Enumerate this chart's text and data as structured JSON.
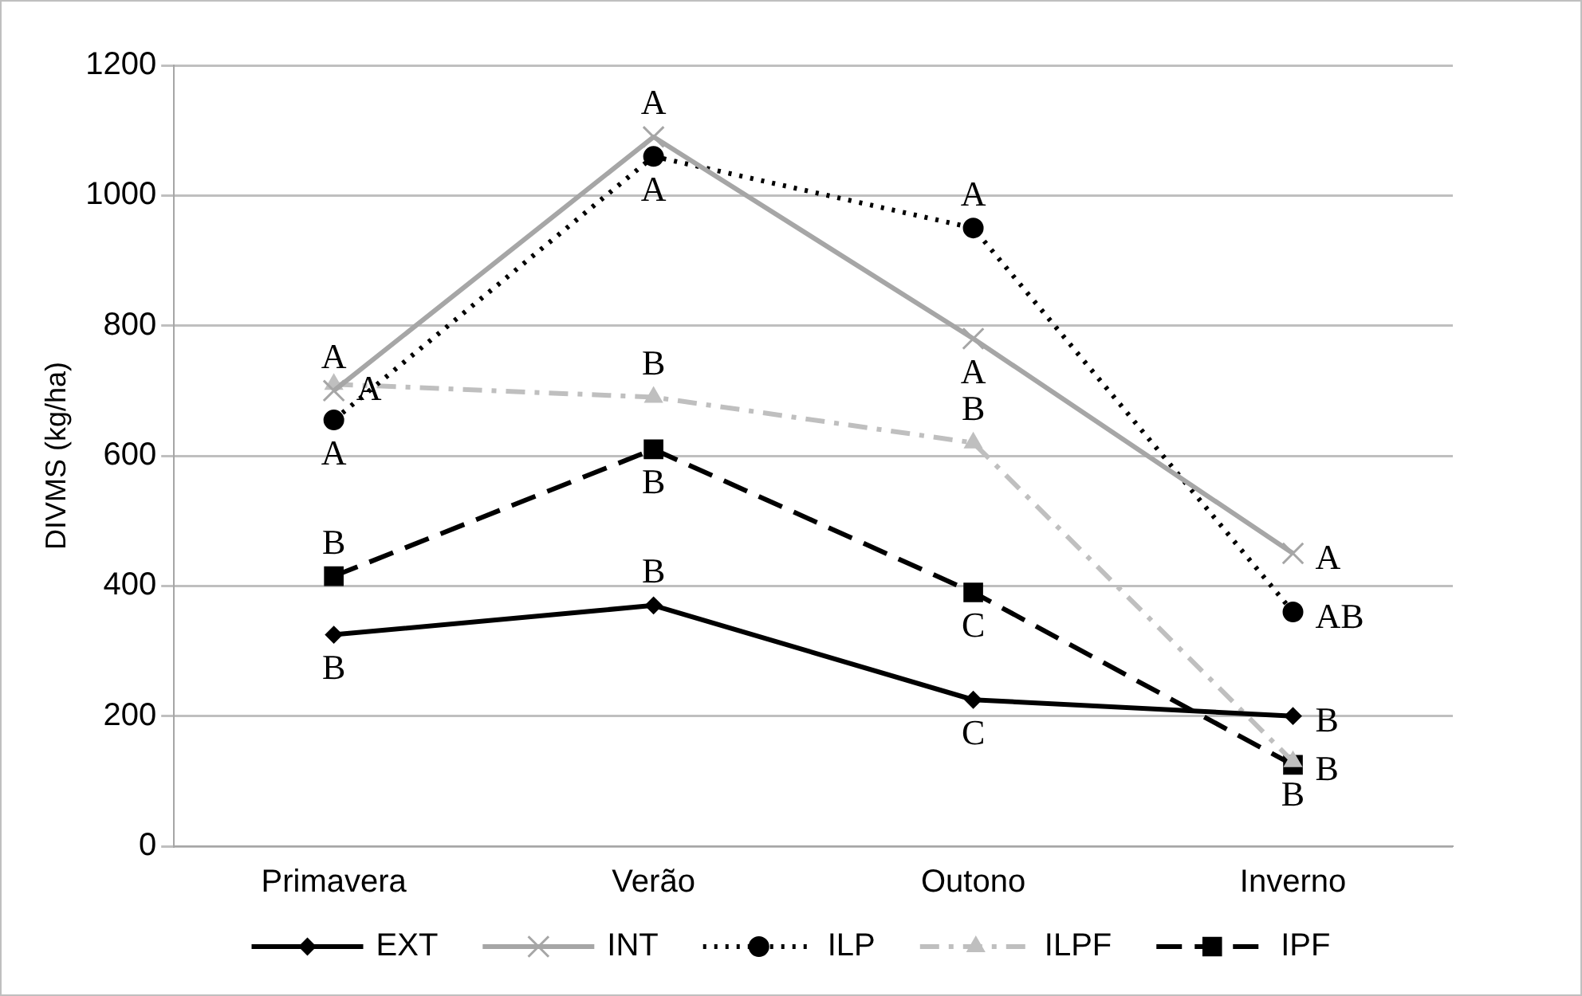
{
  "chart_data": {
    "type": "line",
    "ylabel": "DIVMS (kg/ha)",
    "categories": [
      "Primavera",
      "Verão",
      "Outono",
      "Inverno"
    ],
    "ylim": [
      0,
      1200
    ],
    "yticks": [
      0,
      200,
      400,
      600,
      800,
      1000,
      1200
    ],
    "grid": "y",
    "legend": "bottom",
    "series": [
      {
        "name": "EXT",
        "color": "#000000",
        "marker": "diamond",
        "line_style": "solid",
        "values": [
          325,
          370,
          225,
          200
        ]
      },
      {
        "name": "INT",
        "color": "#a6a6a6",
        "marker": "cross",
        "line_style": "solid",
        "values": [
          700,
          1090,
          780,
          450
        ]
      },
      {
        "name": "ILP",
        "color": "#000000",
        "marker": "circle",
        "line_style": "dotted",
        "values": [
          655,
          1060,
          950,
          360
        ]
      },
      {
        "name": "ILPF",
        "color": "#bfbfbf",
        "marker": "triangle",
        "line_style": "dashdot",
        "values": [
          710,
          690,
          620,
          130
        ]
      },
      {
        "name": "IPF",
        "color": "#000000",
        "marker": "square",
        "line_style": "dashed",
        "values": [
          415,
          610,
          390,
          125
        ]
      }
    ],
    "annotations": [
      {
        "text": "A",
        "x": "Primavera",
        "y": 700
      },
      {
        "text": "A",
        "x": "Primavera",
        "y": 710
      },
      {
        "text": "A",
        "x": "Primavera",
        "y": 655
      },
      {
        "text": "B",
        "x": "Primavera",
        "y": 415
      },
      {
        "text": "B",
        "x": "Primavera",
        "y": 325
      },
      {
        "text": "A",
        "x": "Verão",
        "y": 1090
      },
      {
        "text": "A",
        "x": "Verão",
        "y": 1060
      },
      {
        "text": "B",
        "x": "Verão",
        "y": 690
      },
      {
        "text": "B",
        "x": "Verão",
        "y": 610
      },
      {
        "text": "B",
        "x": "Verão",
        "y": 370
      },
      {
        "text": "A",
        "x": "Outono",
        "y": 950
      },
      {
        "text": "A",
        "x": "Outono",
        "y": 780
      },
      {
        "text": "B",
        "x": "Outono",
        "y": 620
      },
      {
        "text": "C",
        "x": "Outono",
        "y": 390
      },
      {
        "text": "C",
        "x": "Outono",
        "y": 225
      },
      {
        "text": "A",
        "x": "Inverno",
        "y": 450
      },
      {
        "text": "AB",
        "x": "Inverno",
        "y": 360
      },
      {
        "text": "B",
        "x": "Inverno",
        "y": 200
      },
      {
        "text": "B",
        "x": "Inverno",
        "y": 125
      },
      {
        "text": "B",
        "x": "Inverno",
        "y": 130
      }
    ]
  }
}
